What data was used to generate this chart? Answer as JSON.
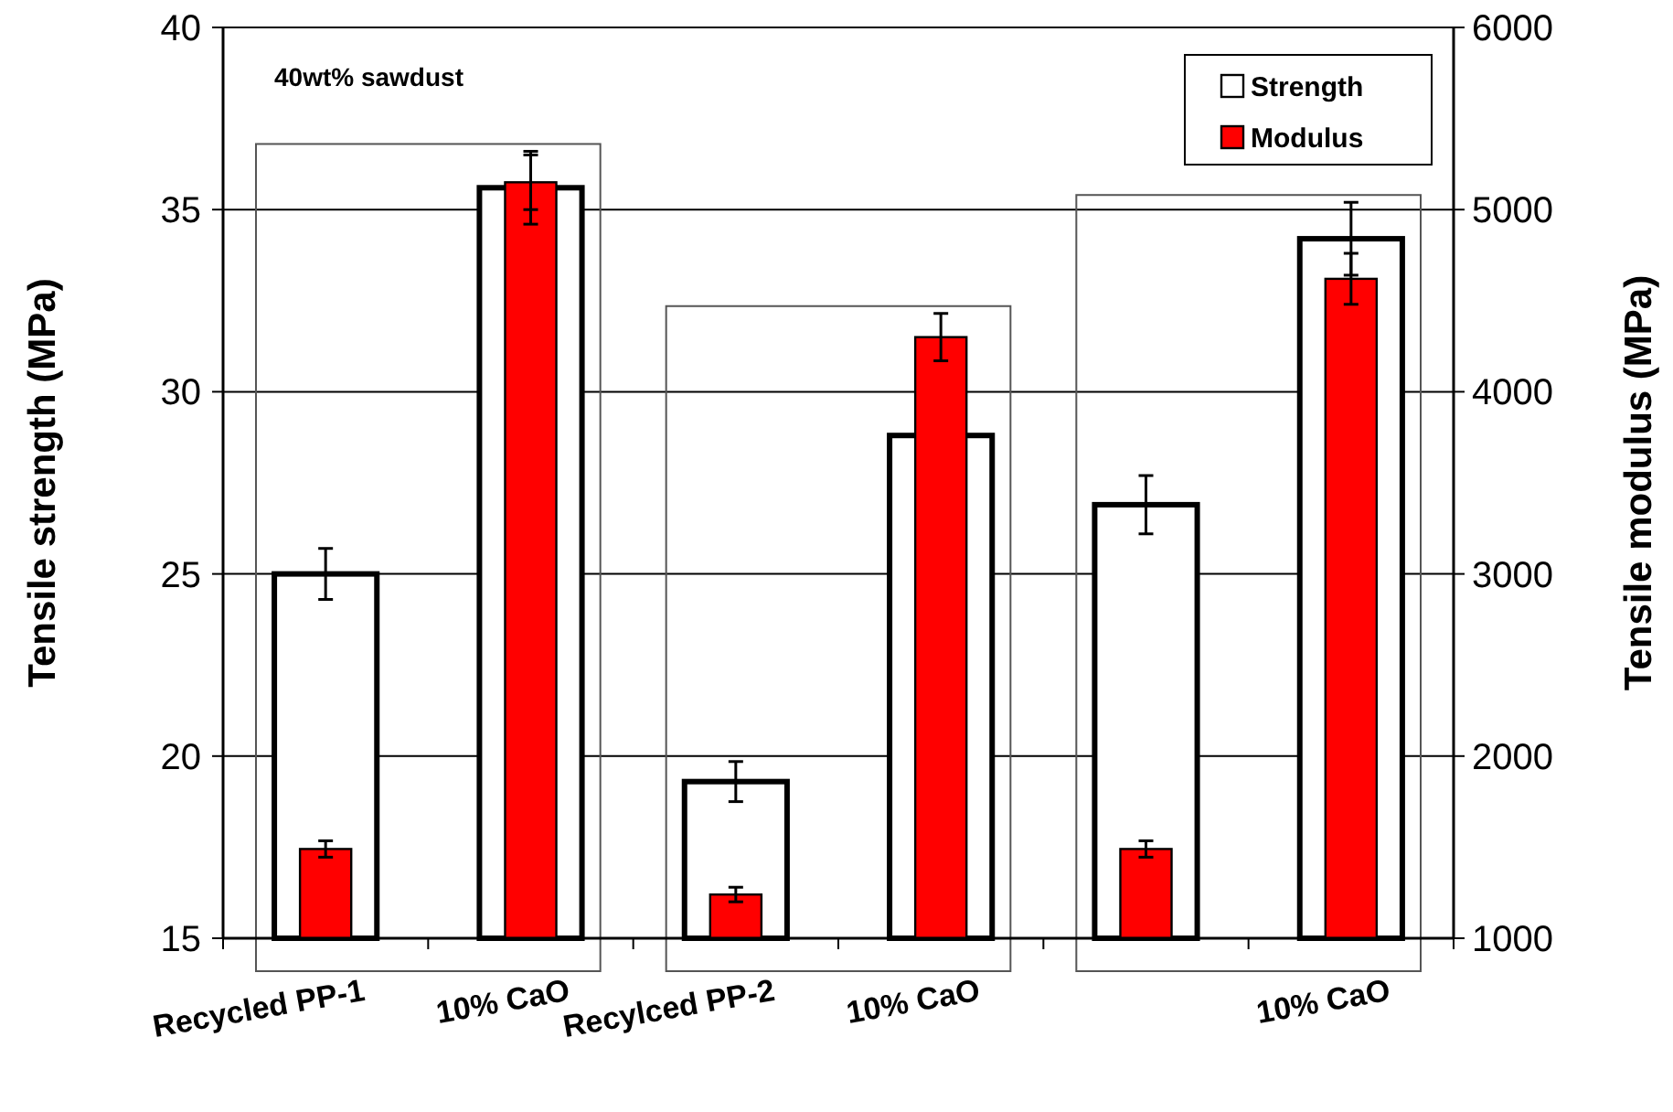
{
  "chart_data": {
    "type": "bar",
    "ylabel": "Tensile strength (MPa)",
    "y2label": "Tensile modulus (MPa)",
    "categories": [
      "Recycled PP-1",
      "10% CaO",
      "Recylced PP-2",
      "10% CaO",
      null,
      "10% CaO"
    ],
    "series": [
      {
        "name": "Strength",
        "color": "#ffffff",
        "values": [
          25.0,
          35.6,
          19.3,
          28.8,
          26.9,
          34.2
        ],
        "errors": [
          0.7,
          1.0,
          0.55,
          null,
          0.8,
          1.0
        ]
      },
      {
        "name": "Modulus",
        "color": "#ff0000",
        "axis": "y2",
        "values": [
          1490,
          5150,
          1240,
          4300,
          1490,
          4620
        ],
        "errors": [
          45,
          150,
          40,
          130,
          45,
          140
        ]
      }
    ],
    "ylim": [
      15,
      40
    ],
    "yticks": [
      15,
      20,
      25,
      30,
      35,
      40
    ],
    "y2lim": [
      1000,
      6000
    ],
    "y2ticks": [
      1000,
      2000,
      3000,
      4000,
      5000,
      6000
    ],
    "grid": "y",
    "legend": "top right",
    "annotations": [
      "40wt% sawdust"
    ]
  }
}
